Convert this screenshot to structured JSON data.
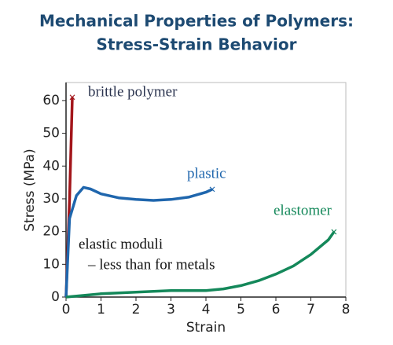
{
  "chart_data": {
    "type": "line",
    "title": [
      "Mechanical Properties of Polymers:",
      "Stress-Strain Behavior"
    ],
    "x_label": "Strain",
    "y_label": "Stress (MPa)",
    "xlim": [
      0,
      8
    ],
    "xticks": [
      0,
      1,
      2,
      3,
      4,
      5,
      6,
      7,
      8
    ],
    "ylim": [
      0,
      65.5
    ],
    "yticks": [
      0,
      10,
      20,
      30,
      40,
      50,
      60
    ],
    "grid": false,
    "series": [
      {
        "name": "brittle polymer",
        "color": "#a3161b",
        "x": [
          0,
          0.1,
          0.18
        ],
        "values": [
          0,
          30,
          61
        ]
      },
      {
        "name": "plastic",
        "color": "#1f66ad",
        "x": [
          0,
          0.1,
          0.3,
          0.5,
          0.7,
          1,
          1.5,
          2,
          2.5,
          3,
          3.5,
          4,
          4.18
        ],
        "values": [
          0,
          24,
          31,
          33.5,
          33,
          31.5,
          30.3,
          29.8,
          29.5,
          29.8,
          30.5,
          32,
          32.9
        ]
      },
      {
        "name": "elastomer",
        "color": "#14885a",
        "x": [
          0,
          1,
          2,
          3,
          4,
          4.5,
          5,
          5.5,
          6,
          6.5,
          7,
          7.5,
          7.66
        ],
        "values": [
          0,
          1,
          1.5,
          2,
          2,
          2.5,
          3.5,
          5,
          7,
          9.5,
          13,
          17.5,
          19.9
        ]
      }
    ],
    "annotations": [
      "elastic moduli",
      "–  less than for metals"
    ]
  }
}
